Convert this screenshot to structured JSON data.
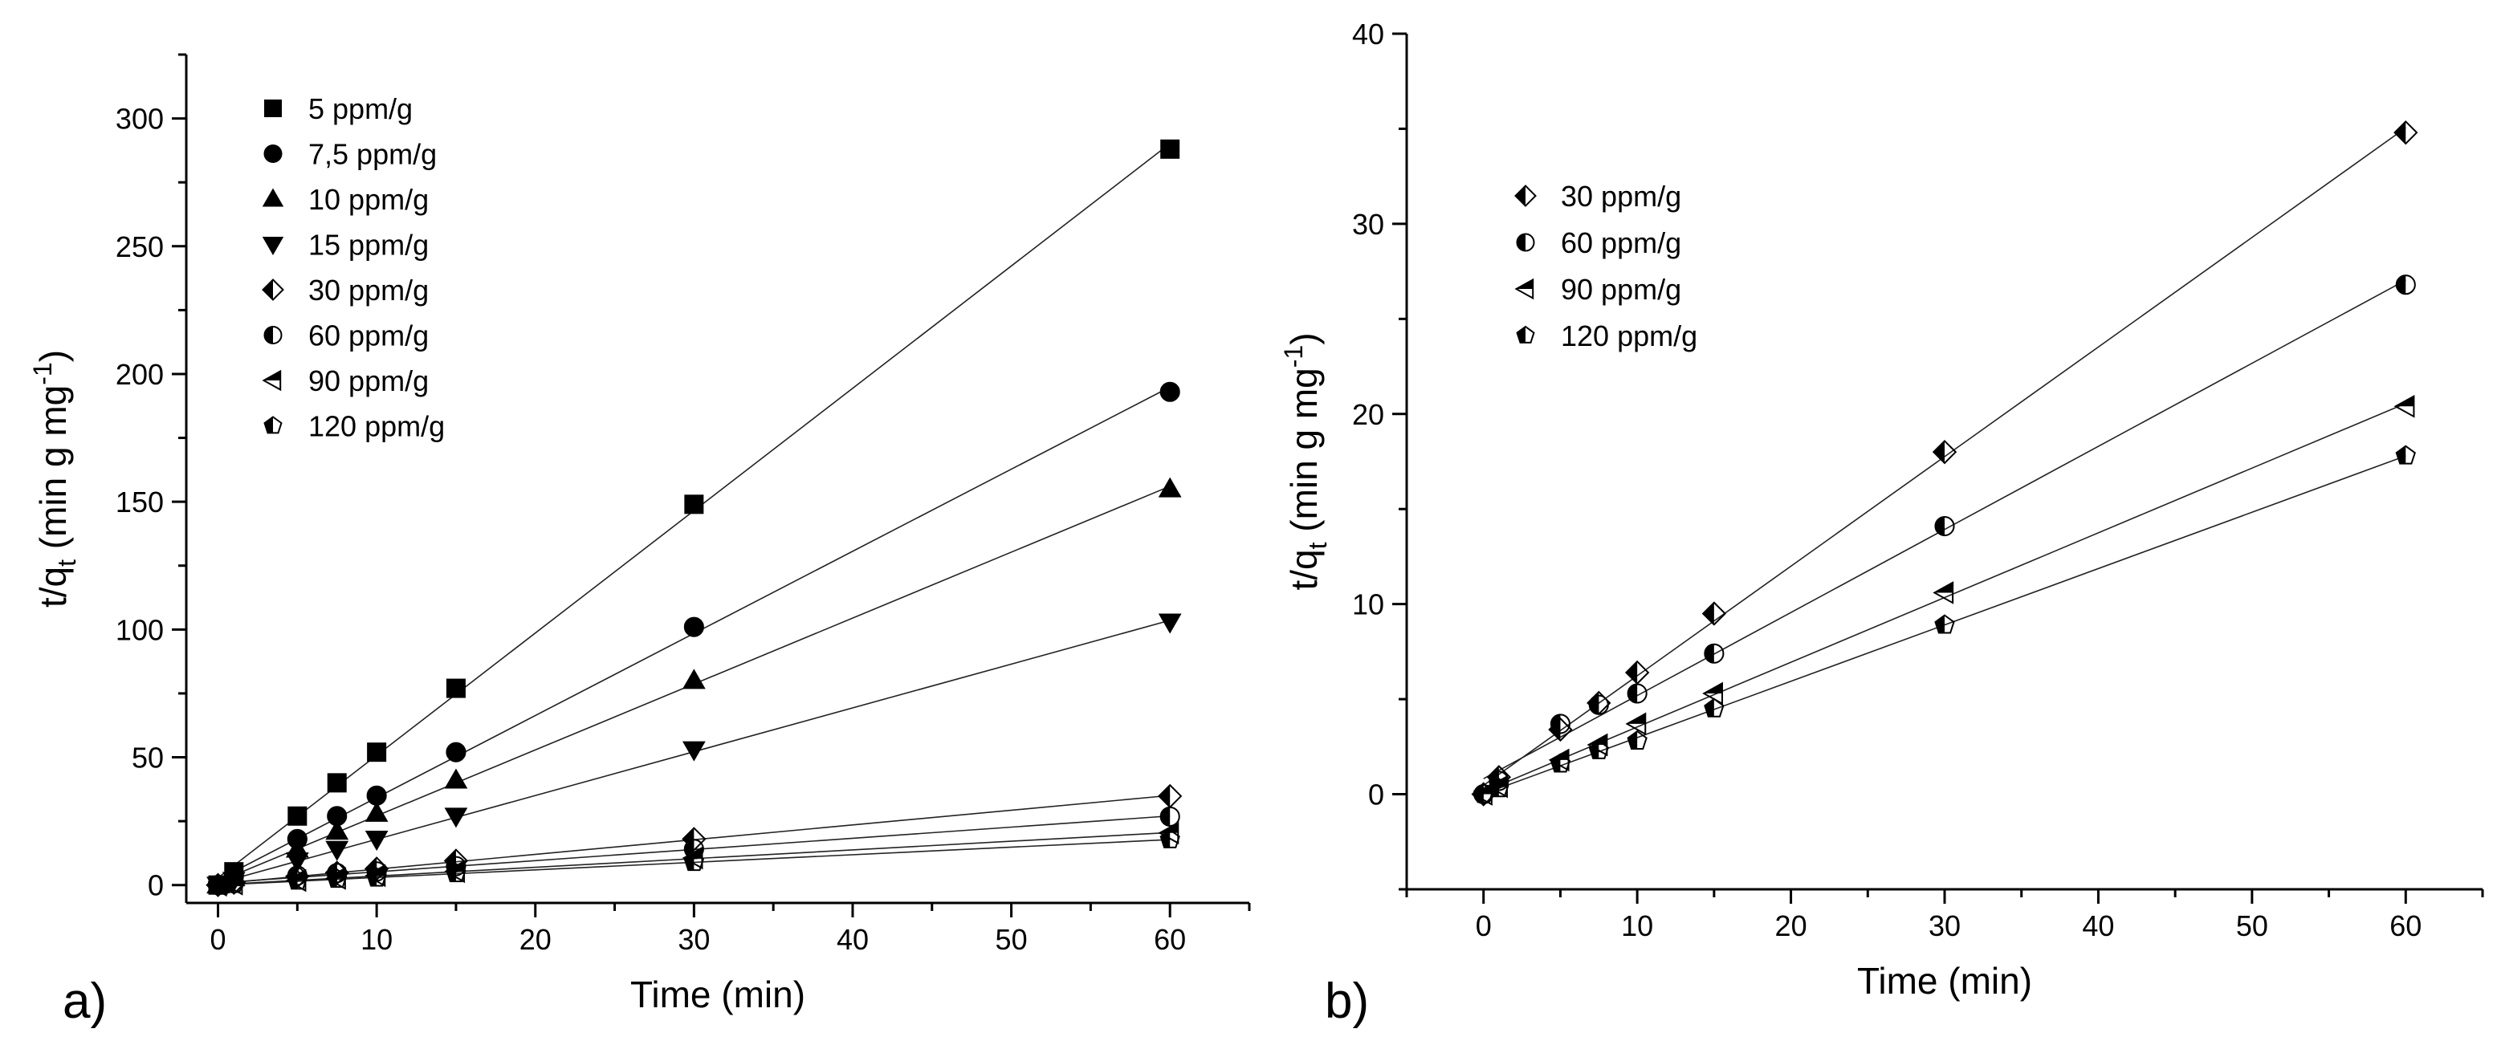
{
  "figure": {
    "panel_letters": [
      "a)",
      "b)"
    ]
  },
  "chart_data": [
    {
      "type": "scatter",
      "panel": "a)",
      "title": "",
      "xlabel": "Time (min)",
      "ylabel": "t/q_t (min g mg^-1)",
      "ylabel_parts": {
        "base": "t/q",
        "sub": "t",
        "mid": " (min g mg",
        "sup": "-1",
        "end": ")"
      },
      "xlim": [
        -2,
        65
      ],
      "ylim": [
        -7,
        325
      ],
      "xticks": [
        0,
        10,
        20,
        30,
        40,
        50,
        60
      ],
      "yticks": [
        0,
        50,
        100,
        150,
        200,
        250,
        300
      ],
      "x": [
        0,
        1,
        5,
        7.5,
        10,
        15,
        30,
        60
      ],
      "legend_position": "top-left",
      "series": [
        {
          "name": "5 ppm/g",
          "marker": "square",
          "values": [
            0,
            5.2,
            27,
            40,
            52,
            77,
            149,
            288
          ]
        },
        {
          "name": "7,5 ppm/g",
          "marker": "circle",
          "values": [
            0,
            3.5,
            18,
            27,
            35,
            52,
            101,
            193
          ]
        },
        {
          "name": "10 ppm/g",
          "marker": "triangle-up",
          "values": [
            0,
            2.8,
            14,
            21,
            28,
            41,
            80,
            155
          ]
        },
        {
          "name": "15 ppm/g",
          "marker": "triangle-down",
          "values": [
            0,
            1.9,
            9.5,
            14,
            18,
            27,
            53,
            103
          ]
        },
        {
          "name": "30 ppm/g",
          "marker": "half-diamond",
          "values": [
            0,
            0.9,
            3.4,
            4.8,
            6.4,
            9.5,
            18,
            34.8
          ]
        },
        {
          "name": "60 ppm/g",
          "marker": "half-circle",
          "values": [
            0,
            0.7,
            3.7,
            4.7,
            5.3,
            7.4,
            14.1,
            26.8
          ]
        },
        {
          "name": "90 ppm/g",
          "marker": "half-triangle-left",
          "values": [
            0,
            0.4,
            1.8,
            2.6,
            3.7,
            5.3,
            10.6,
            20.4
          ]
        },
        {
          "name": "120 ppm/g",
          "marker": "half-pentagon",
          "values": [
            0,
            0.3,
            1.6,
            2.3,
            2.8,
            4.5,
            8.9,
            17.8
          ]
        }
      ]
    },
    {
      "type": "scatter",
      "panel": "b)",
      "title": "",
      "xlabel": "Time (min)",
      "ylabel": "t/q_t (min g mg^-1)",
      "ylabel_parts": {
        "base": "t/q",
        "sub": "t",
        "mid": " (min g mg",
        "sup": "-1",
        "end": ")"
      },
      "xlim": [
        -5,
        65
      ],
      "ylim": [
        -5,
        40
      ],
      "xticks": [
        0,
        10,
        20,
        30,
        40,
        50,
        60
      ],
      "yticks": [
        0,
        10,
        20,
        30,
        40
      ],
      "x": [
        0,
        1,
        5,
        7.5,
        10,
        15,
        30,
        60
      ],
      "legend_position": "top-left",
      "series": [
        {
          "name": "30 ppm/g",
          "marker": "half-diamond",
          "values": [
            0,
            0.9,
            3.4,
            4.8,
            6.4,
            9.5,
            18,
            34.8
          ]
        },
        {
          "name": "60 ppm/g",
          "marker": "half-circle",
          "values": [
            0,
            0.7,
            3.7,
            4.7,
            5.3,
            7.4,
            14.1,
            26.8
          ]
        },
        {
          "name": "90 ppm/g",
          "marker": "half-triangle-left",
          "values": [
            0,
            0.4,
            1.8,
            2.6,
            3.7,
            5.3,
            10.6,
            20.4
          ]
        },
        {
          "name": "120 ppm/g",
          "marker": "half-pentagon",
          "values": [
            0,
            0.3,
            1.6,
            2.3,
            2.8,
            4.5,
            8.9,
            17.8
          ]
        }
      ]
    }
  ]
}
